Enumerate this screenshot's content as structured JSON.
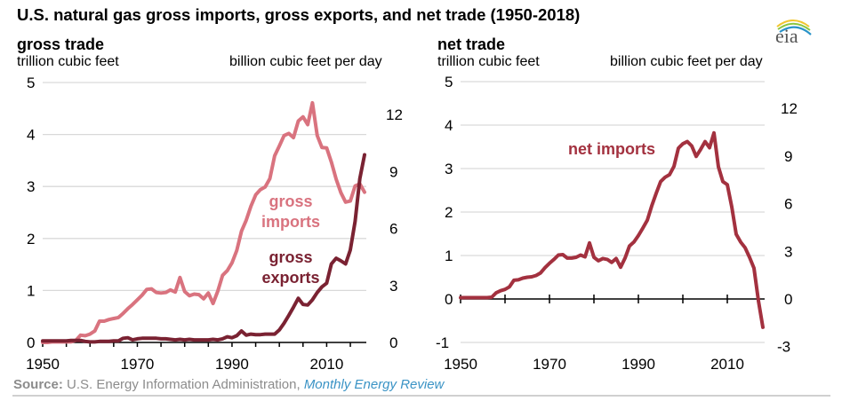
{
  "title": "U.S. natural gas gross imports, gross exports, and net trade (1950-2018)",
  "logo_text": "eia",
  "source": {
    "label": "Source:",
    "text": " U.S. Energy Information Administration, ",
    "publication": "Monthly Energy Review"
  },
  "colors": {
    "gross_imports": "#d9737f",
    "gross_exports": "#7a2232",
    "net_imports": "#a3313f",
    "grid": "#d9d9d9",
    "axis": "#000000"
  },
  "chart_data": [
    {
      "type": "line",
      "title": "gross trade",
      "ylabel": "trillion cubic feet",
      "ylabel_right": "billion cubic feet per day",
      "xlim": [
        1950,
        2018
      ],
      "ylim": [
        0,
        5
      ],
      "yticks": [
        0,
        1,
        2,
        3,
        4,
        5
      ],
      "yticks_right": [
        0,
        3,
        6,
        9,
        12
      ],
      "yticks_right_values_tcf": [
        0,
        1.0959,
        2.1918,
        3.2877,
        4.3836
      ],
      "xticks": [
        1950,
        1955,
        1960,
        1965,
        1970,
        1975,
        1980,
        1985,
        1990,
        1995,
        2000,
        2005,
        2010,
        2015
      ],
      "xtick_labels": [
        "1950",
        "1970",
        "1990",
        "2010"
      ],
      "xtick_label_values": [
        1950,
        1970,
        1990,
        2010
      ],
      "grid": true,
      "x": [
        1950,
        1951,
        1952,
        1953,
        1954,
        1955,
        1956,
        1957,
        1958,
        1959,
        1960,
        1961,
        1962,
        1963,
        1964,
        1965,
        1966,
        1967,
        1968,
        1969,
        1970,
        1971,
        1972,
        1973,
        1974,
        1975,
        1976,
        1977,
        1978,
        1979,
        1980,
        1981,
        1982,
        1983,
        1984,
        1985,
        1986,
        1987,
        1988,
        1989,
        1990,
        1991,
        1992,
        1993,
        1994,
        1995,
        1996,
        1997,
        1998,
        1999,
        2000,
        2001,
        2002,
        2003,
        2004,
        2005,
        2006,
        2007,
        2008,
        2009,
        2010,
        2011,
        2012,
        2013,
        2014,
        2015,
        2016,
        2017,
        2018
      ],
      "series": [
        {
          "name": "gross imports",
          "label": [
            "gross",
            "imports"
          ],
          "values": [
            0.0,
            0.0,
            0.01,
            0.01,
            0.01,
            0.01,
            0.01,
            0.04,
            0.14,
            0.13,
            0.16,
            0.22,
            0.41,
            0.41,
            0.44,
            0.46,
            0.48,
            0.56,
            0.65,
            0.73,
            0.82,
            0.91,
            1.02,
            1.03,
            0.96,
            0.95,
            0.96,
            1.01,
            0.97,
            1.25,
            0.98,
            0.9,
            0.93,
            0.92,
            0.84,
            0.95,
            0.75,
            0.99,
            1.29,
            1.38,
            1.53,
            1.77,
            2.14,
            2.35,
            2.62,
            2.84,
            2.94,
            2.99,
            3.15,
            3.59,
            3.78,
            3.98,
            4.02,
            3.94,
            4.26,
            4.34,
            4.19,
            4.61,
            3.98,
            3.75,
            3.74,
            3.47,
            3.14,
            2.88,
            2.7,
            2.72,
            3.01,
            3.05,
            2.89
          ]
        },
        {
          "name": "gross exports",
          "label": [
            "gross",
            "exports"
          ],
          "values": [
            0.03,
            0.03,
            0.03,
            0.03,
            0.03,
            0.03,
            0.04,
            0.04,
            0.04,
            0.02,
            0.01,
            0.01,
            0.02,
            0.02,
            0.02,
            0.03,
            0.03,
            0.08,
            0.09,
            0.05,
            0.07,
            0.08,
            0.08,
            0.08,
            0.08,
            0.07,
            0.07,
            0.06,
            0.05,
            0.06,
            0.05,
            0.06,
            0.05,
            0.05,
            0.05,
            0.05,
            0.06,
            0.05,
            0.07,
            0.11,
            0.09,
            0.13,
            0.22,
            0.14,
            0.16,
            0.15,
            0.15,
            0.16,
            0.16,
            0.16,
            0.24,
            0.37,
            0.52,
            0.68,
            0.85,
            0.73,
            0.72,
            0.82,
            0.96,
            1.07,
            1.14,
            1.51,
            1.62,
            1.57,
            1.51,
            1.78,
            2.33,
            3.15,
            3.61
          ]
        }
      ]
    },
    {
      "type": "line",
      "title": "net trade",
      "ylabel": "trillion cubic feet",
      "ylabel_right": "billion cubic feet per day",
      "xlim": [
        1950,
        2018
      ],
      "ylim": [
        -1,
        5
      ],
      "yticks": [
        -1,
        0,
        1,
        2,
        3,
        4,
        5
      ],
      "yticks_right": [
        -3,
        0,
        3,
        6,
        9,
        12
      ],
      "yticks_right_values_tcf": [
        -1.0959,
        0,
        1.0959,
        2.1918,
        3.2877,
        4.3836
      ],
      "xticks": [
        1950,
        1960,
        1970,
        1980,
        1990,
        2000,
        2010
      ],
      "xtick_labels": [
        "1950",
        "1970",
        "1990",
        "2010"
      ],
      "xtick_label_values": [
        1950,
        1970,
        1990,
        2010
      ],
      "grid": true,
      "x": [
        1950,
        1951,
        1952,
        1953,
        1954,
        1955,
        1956,
        1957,
        1958,
        1959,
        1960,
        1961,
        1962,
        1963,
        1964,
        1965,
        1966,
        1967,
        1968,
        1969,
        1970,
        1971,
        1972,
        1973,
        1974,
        1975,
        1976,
        1977,
        1978,
        1979,
        1980,
        1981,
        1982,
        1983,
        1984,
        1985,
        1986,
        1987,
        1988,
        1989,
        1990,
        1991,
        1992,
        1993,
        1994,
        1995,
        1996,
        1997,
        1998,
        1999,
        2000,
        2001,
        2002,
        2003,
        2004,
        2005,
        2006,
        2007,
        2008,
        2009,
        2010,
        2011,
        2012,
        2013,
        2014,
        2015,
        2016,
        2017,
        2018
      ],
      "series": [
        {
          "name": "net imports",
          "label": [
            "net imports"
          ],
          "values": [
            0.03,
            0.03,
            0.03,
            0.03,
            0.03,
            0.03,
            0.03,
            0.04,
            0.14,
            0.19,
            0.22,
            0.28,
            0.43,
            0.44,
            0.48,
            0.5,
            0.51,
            0.54,
            0.6,
            0.72,
            0.82,
            0.91,
            1.01,
            1.02,
            0.94,
            0.94,
            0.96,
            1.01,
            0.97,
            1.29,
            0.96,
            0.88,
            0.93,
            0.91,
            0.84,
            0.93,
            0.73,
            0.94,
            1.22,
            1.31,
            1.46,
            1.63,
            1.81,
            2.14,
            2.43,
            2.7,
            2.8,
            2.86,
            3.05,
            3.47,
            3.57,
            3.62,
            3.52,
            3.28,
            3.44,
            3.62,
            3.48,
            3.82,
            3.04,
            2.7,
            2.63,
            2.12,
            1.49,
            1.31,
            1.18,
            0.96,
            0.71,
            -0.04,
            -0.65
          ]
        }
      ]
    }
  ]
}
